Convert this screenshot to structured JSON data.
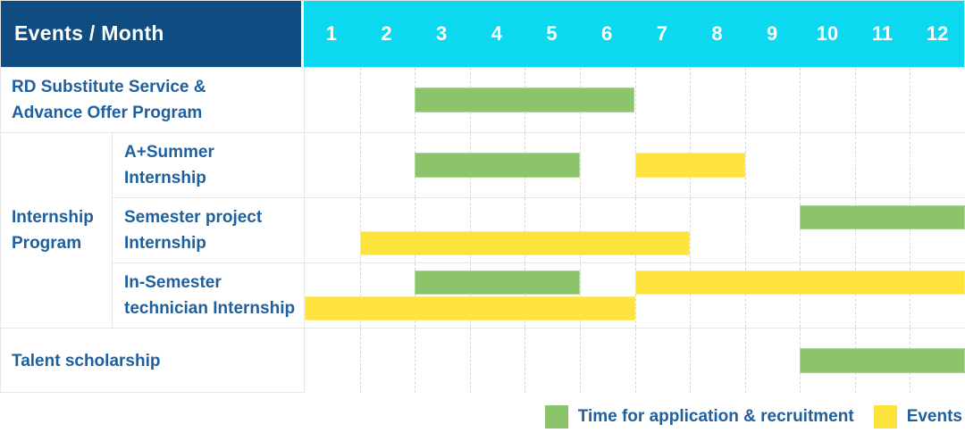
{
  "header": {
    "title": "Events / Month",
    "months": [
      "1",
      "2",
      "3",
      "4",
      "5",
      "6",
      "7",
      "8",
      "9",
      "10",
      "11",
      "12"
    ]
  },
  "colors": {
    "header_bg": "#0E4C81",
    "months_bg": "#0CD8F0",
    "green": "#8BC46A",
    "yellow": "#FFE33D",
    "label_text": "#1E5F9D",
    "grid_line": "#E6E6E6"
  },
  "legend": {
    "items": [
      {
        "label": "Time for application & recruitment",
        "color": "green"
      },
      {
        "label": "Events",
        "color": "yellow"
      }
    ]
  },
  "chart_data": {
    "type": "bar",
    "subtype": "gantt",
    "title": "Events / Month",
    "x_axis": {
      "unit": "month",
      "ticks": [
        1,
        2,
        3,
        4,
        5,
        6,
        7,
        8,
        9,
        10,
        11,
        12
      ],
      "range": [
        1,
        12
      ]
    },
    "series_legend": {
      "green": "Time for application & recruitment",
      "yellow": "Events"
    },
    "group_label": {
      "label": "Internship Program",
      "label_lines": [
        "Internship",
        "Program"
      ]
    },
    "rows": [
      {
        "group": "",
        "label": "RD Substitute Service & Advance Offer Program",
        "label_lines": [
          "RD Substitute Service &",
          "Advance Offer Program"
        ],
        "lanes": [
          [
            {
              "series": "Time for application & recruitment",
              "color": "green",
              "start_month": 3,
              "end_month": 6
            }
          ]
        ]
      },
      {
        "group": "Internship Program",
        "label": "A+Summer Internship",
        "label_lines": [
          "A+Summer",
          "Internship"
        ],
        "lanes": [
          [
            {
              "series": "Time for application & recruitment",
              "color": "green",
              "start_month": 3,
              "end_month": 5
            },
            {
              "series": "Events",
              "color": "yellow",
              "start_month": 7,
              "end_month": 8
            }
          ]
        ]
      },
      {
        "group": "Internship Program",
        "label": "Semester project Internship",
        "label_lines": [
          "Semester project",
          "Internship"
        ],
        "lanes": [
          [
            {
              "series": "Time for application & recruitment",
              "color": "green",
              "start_month": 10,
              "end_month": 12
            }
          ],
          [
            {
              "series": "Events",
              "color": "yellow",
              "start_month": 2,
              "end_month": 7
            }
          ]
        ]
      },
      {
        "group": "Internship Program",
        "label": "In-Semester technician Internship",
        "label_lines": [
          "In-Semester",
          "technician Internship"
        ],
        "lanes": [
          [
            {
              "series": "Time for application & recruitment",
              "color": "green",
              "start_month": 3,
              "end_month": 5
            },
            {
              "series": "Events",
              "color": "yellow",
              "start_month": 7,
              "end_month": 12
            }
          ],
          [
            {
              "series": "Events",
              "color": "yellow",
              "start_month": 1,
              "end_month": 6
            }
          ]
        ]
      },
      {
        "group": "",
        "label": "Talent scholarship",
        "label_lines": [
          "Talent scholarship"
        ],
        "lanes": [
          [
            {
              "series": "Time for application & recruitment",
              "color": "green",
              "start_month": 10,
              "end_month": 12
            }
          ]
        ]
      }
    ]
  }
}
